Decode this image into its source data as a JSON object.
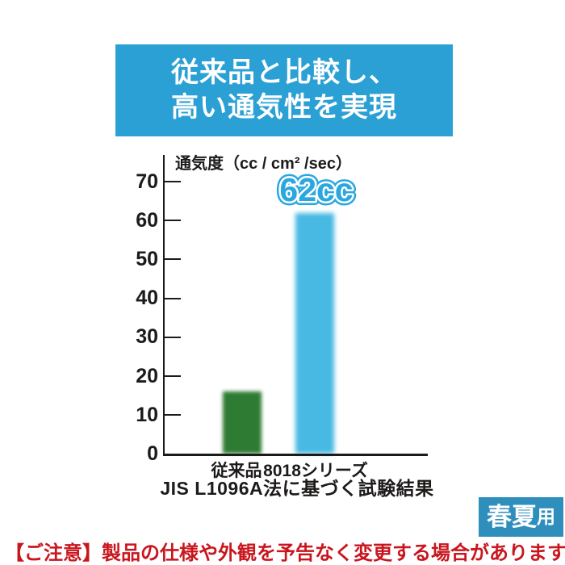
{
  "header": {
    "line1": "従来品と比較し、",
    "line2": "高い通気性を実現"
  },
  "chart_data": {
    "type": "bar",
    "title": "通気度（cc / cm² /sec）",
    "categories": [
      "従来品",
      "8018シリーズ"
    ],
    "values": [
      16,
      62
    ],
    "bar_colors": [
      "#2e7b33",
      "#47b9e3"
    ],
    "annotation": "62cc",
    "annotation_color": "#2aa7df",
    "ylim": [
      0,
      70
    ],
    "yticks": [
      0,
      10,
      20,
      30,
      40,
      50,
      60,
      70
    ],
    "grid": false,
    "legend": "none",
    "caption": "JIS L1096A法に基づく試験結果"
  },
  "badge": {
    "main": "春夏",
    "suffix": "用"
  },
  "note": {
    "text": "【ご注意】製品の仕様や外観を予告なく変更する場合があります。"
  },
  "colors": {
    "banner_bg": "#2ba0d4",
    "badge_bg": "#2f8fbc",
    "note_red": "#c9161e",
    "axis_black": "#1d1a1a"
  }
}
